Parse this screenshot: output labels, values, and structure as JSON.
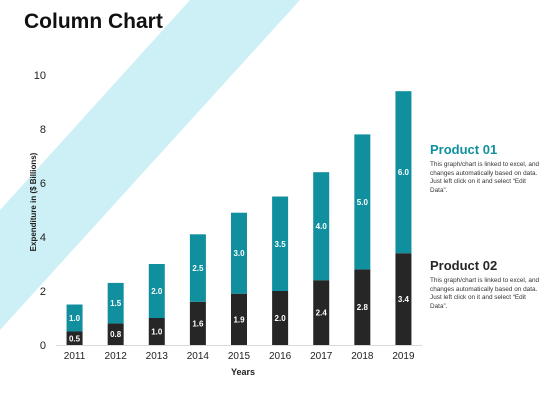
{
  "title": "Column Chart",
  "colors": {
    "band": "#cdf0f6",
    "product_01": "#10909e",
    "product_02": "#262626",
    "title_product_01": "#10909e",
    "title_product_02": "#262626"
  },
  "legend": [
    {
      "name": "Product 01",
      "description": "This graph/chart is linked to excel, and changes automatically based on data. Just left click on it and select “Edit Data”."
    },
    {
      "name": "Product 02",
      "description": "This graph/chart is linked to excel, and changes automatically based on data. Just left click on it and select “Edit Data”."
    }
  ],
  "chart_data": {
    "type": "bar",
    "stacked": true,
    "categories": [
      "2011",
      "2012",
      "2013",
      "2014",
      "2015",
      "2016",
      "2017",
      "2018",
      "2019"
    ],
    "series": [
      {
        "name": "Product 02",
        "values": [
          0.5,
          0.8,
          1.0,
          1.6,
          1.9,
          2.0,
          2.4,
          2.8,
          3.4
        ]
      },
      {
        "name": "Product 01",
        "values": [
          1.0,
          1.5,
          2.0,
          2.5,
          3.0,
          3.5,
          4.0,
          5.0,
          6.0
        ]
      }
    ],
    "data_labels": {
      "Product 02": [
        "0.5",
        "0.8",
        "1.0",
        "1.6",
        "1.9",
        "2.0",
        "2.4",
        "2.8",
        "3.4"
      ],
      "Product 01": [
        "1.0",
        "1.5",
        "2.0",
        "2.5",
        "3.0",
        "3.5",
        "4.0",
        "5.0",
        "6.0"
      ]
    },
    "xlabel": "Years",
    "ylabel": "Expenditure in ($ Billions)",
    "ylim": [
      0,
      10
    ],
    "yticks": [
      "0",
      "2",
      "4",
      "6",
      "8",
      "10"
    ],
    "grid": false,
    "legend_position": "right"
  }
}
